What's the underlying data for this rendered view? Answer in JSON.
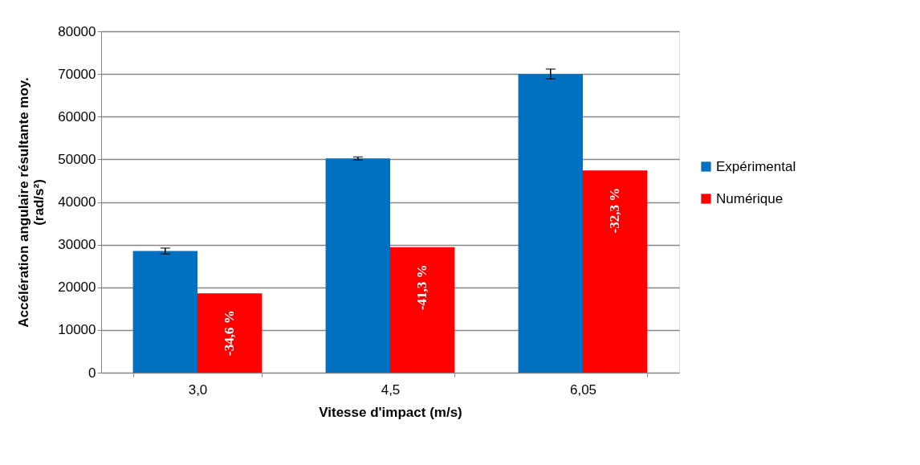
{
  "chart_data": {
    "type": "bar",
    "xlabel": "Vitesse d'impact (m/s)",
    "ylabel": "Accélération angulaire résultante moy.\n(rad/s²)",
    "categories": [
      "3,0",
      "4,5",
      "6,05"
    ],
    "series": [
      {
        "name": "Expérimental",
        "color": "#0070c0",
        "values": [
          28500,
          50200,
          70000
        ],
        "errors": [
          700,
          350,
          1150
        ]
      },
      {
        "name": "Numérique",
        "color": "#ff0000",
        "values": [
          18600,
          29400,
          47400
        ]
      }
    ],
    "annotations": [
      {
        "text": "-34,6 %",
        "x": "3,0",
        "y": 9300
      },
      {
        "text": "-41,3 %",
        "x": "4,5",
        "y": 20000
      },
      {
        "text": "-32,3 %",
        "x": "6,05",
        "y": 38000
      }
    ],
    "ylim": [
      0,
      80000
    ],
    "yticks": [
      0,
      10000,
      20000,
      30000,
      40000,
      50000,
      60000,
      70000,
      80000
    ],
    "grid": "y",
    "legend": "right"
  }
}
